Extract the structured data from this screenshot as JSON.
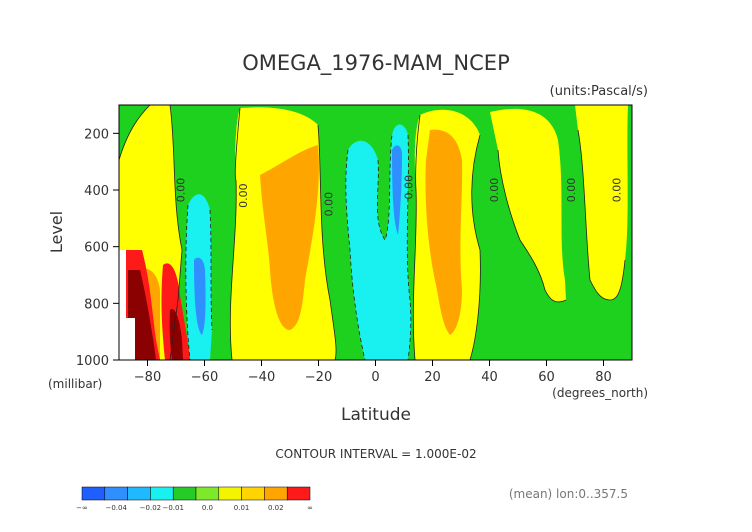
{
  "chart_data": {
    "type": "contour",
    "title": "OMEGA_1976-MAM_NCEP",
    "units_label": "(units:Pascal/s)",
    "xlabel": "Latitude",
    "x_units": "(degrees_north)",
    "ylabel": "Level",
    "y_units": "(millibar)",
    "xlim": [
      -90,
      90
    ],
    "ylim": [
      1000,
      100
    ],
    "x_ticks": [
      -80,
      -60,
      -40,
      -20,
      0,
      20,
      40,
      60,
      80
    ],
    "y_ticks": [
      200,
      400,
      600,
      800,
      1000
    ],
    "contour_interval_text": "CONTOUR INTERVAL = 1.000E-02",
    "mean_text": "(mean) lon:0..357.5",
    "zero_labels": [
      {
        "text": "0.00",
        "lat": -67,
        "level": 400
      },
      {
        "text": "0.00",
        "lat": -45,
        "level": 420
      },
      {
        "text": "0.00",
        "lat": -15,
        "level": 450
      },
      {
        "text": "0.00",
        "lat": 13,
        "level": 390
      },
      {
        "text": "0.00",
        "lat": 43,
        "level": 400
      },
      {
        "text": "0.00",
        "lat": 70,
        "level": 400
      },
      {
        "text": "0.00",
        "lat": 86,
        "level": 400
      }
    ],
    "colorbar": {
      "labels": [
        "-∞",
        "-0.04",
        "-0.02",
        "-0.01",
        "0.0",
        "0.01",
        "0.02",
        "∞"
      ],
      "colors": [
        "#1f5fff",
        "#2f8fff",
        "#1fb9ff",
        "#19f0f0",
        "#25cc25",
        "#7ee82b",
        "#f4f400",
        "#ffd400",
        "#ffa400",
        "#ff1a1a"
      ]
    },
    "band_colors": {
      "green": "#1fd11f",
      "yellow": "#ffff00",
      "orange": "#ffa500",
      "light_cyan": "#19f0f0",
      "blue": "#2f8fff",
      "red": "#ff1a1a",
      "dark_red": "#8b0000"
    }
  }
}
